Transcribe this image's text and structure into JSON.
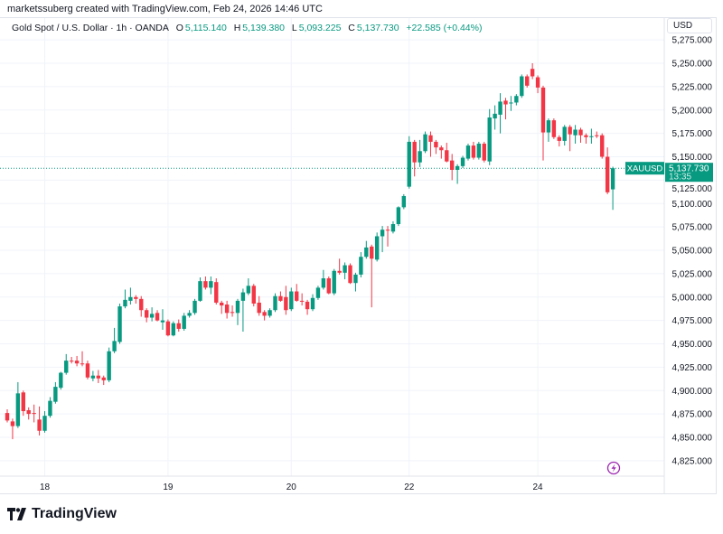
{
  "attribution": "marketssuberg created with TradingView.com, Feb 24, 2026 14:46 UTC",
  "legend": {
    "symbol_title": "Gold Spot / U.S. Dollar · 1h · OANDA",
    "open_label": "O",
    "open": "5,115.140",
    "high_label": "H",
    "high": "5,139.380",
    "low_label": "L",
    "low": "5,093.225",
    "close_label": "C",
    "close": "5,137.730",
    "change": "+22.585 (+0.44%)"
  },
  "currency": "USD",
  "last_price": {
    "symbol": "XAUUSD",
    "price": "5,137.730",
    "countdown": "13:35",
    "value": 5137.73
  },
  "logo_text": "TradingView",
  "colors": {
    "up": "#089981",
    "down": "#F23645",
    "grid": "#f0f3fa",
    "event_icon": "#9c27b0"
  },
  "icons": {
    "event": "lightning-icon"
  },
  "chart_data": {
    "type": "candlestick",
    "ylim": [
      4815,
      5285
    ],
    "y_ticks": [
      "5,275.000",
      "5,250.000",
      "5,225.000",
      "5,200.000",
      "5,175.000",
      "5,150.000",
      "5,125.000",
      "5,100.000",
      "5,075.000",
      "5,050.000",
      "5,025.000",
      "5,000.000",
      "4,975.000",
      "4,950.000",
      "4,925.000",
      "4,900.000",
      "4,875.000",
      "4,850.000",
      "4,825.000"
    ],
    "y_tick_values": [
      5275,
      5250,
      5225,
      5200,
      5175,
      5150,
      5125,
      5100,
      5075,
      5050,
      5025,
      5000,
      4975,
      4950,
      4925,
      4900,
      4875,
      4850,
      4825
    ],
    "x_ticks": [
      {
        "label": "18",
        "index": 7
      },
      {
        "label": "19",
        "index": 30
      },
      {
        "label": "20",
        "index": 53
      },
      {
        "label": "22",
        "index": 75
      },
      {
        "label": "24",
        "index": 99
      }
    ],
    "grid": true,
    "candles_ohlc": [
      [
        4876,
        4880,
        4866,
        4868
      ],
      [
        4867,
        4870,
        4848,
        4862
      ],
      [
        4862,
        4909,
        4860,
        4897
      ],
      [
        4898,
        4900,
        4873,
        4878
      ],
      [
        4879,
        4882,
        4869,
        4875
      ],
      [
        4876,
        4885,
        4866,
        4875
      ],
      [
        4869,
        4883,
        4852,
        4857
      ],
      [
        4857,
        4878,
        4855,
        4873
      ],
      [
        4873,
        4893,
        4871,
        4889
      ],
      [
        4888,
        4909,
        4886,
        4904
      ],
      [
        4903,
        4920,
        4901,
        4919
      ],
      [
        4919,
        4939,
        4917,
        4932
      ],
      [
        4932,
        4936,
        4929,
        4931
      ],
      [
        4932,
        4937,
        4926,
        4929
      ],
      [
        4929,
        4942,
        4926,
        4928
      ],
      [
        4929,
        4932,
        4912,
        4914
      ],
      [
        4913,
        4921,
        4910,
        4916
      ],
      [
        4916,
        4922,
        4908,
        4913
      ],
      [
        4914,
        4916,
        4906,
        4911
      ],
      [
        4911,
        4946,
        4909,
        4942
      ],
      [
        4942,
        4967,
        4940,
        4953
      ],
      [
        4952,
        4993,
        4950,
        4990
      ],
      [
        4990,
        5008,
        4988,
        4997
      ],
      [
        4996,
        5010,
        4992,
        5000
      ],
      [
        5000,
        5002,
        4993,
        4998
      ],
      [
        4998,
        5001,
        4979,
        4986
      ],
      [
        4986,
        4988,
        4973,
        4978
      ],
      [
        4978,
        4989,
        4974,
        4982
      ],
      [
        4983,
        4986,
        4974,
        4975
      ],
      [
        4973,
        4987,
        4965,
        4975
      ],
      [
        4974,
        4976,
        4958,
        4959
      ],
      [
        4959,
        4974,
        4958,
        4972
      ],
      [
        4972,
        4976,
        4963,
        4966
      ],
      [
        4966,
        4983,
        4964,
        4980
      ],
      [
        4980,
        4986,
        4978,
        4983
      ],
      [
        4983,
        4998,
        4981,
        4996
      ],
      [
        4996,
        5021,
        4995,
        5017
      ],
      [
        5017,
        5022,
        5008,
        5010
      ],
      [
        5010,
        5022,
        5003,
        5017
      ],
      [
        5016,
        5020,
        4992,
        4994
      ],
      [
        4994,
        4996,
        4982,
        4991
      ],
      [
        4992,
        4996,
        4977,
        4983
      ],
      [
        4984,
        4991,
        4979,
        4983
      ],
      [
        4983,
        4998,
        4970,
        4996
      ],
      [
        4996,
        5009,
        4963,
        5005
      ],
      [
        5004,
        5020,
        5002,
        5012
      ],
      [
        5012,
        5014,
        4990,
        4993
      ],
      [
        4994,
        5001,
        4980,
        4983
      ],
      [
        4984,
        4986,
        4975,
        4980
      ],
      [
        4980,
        4988,
        4978,
        4986
      ],
      [
        4986,
        5004,
        4984,
        5001
      ],
      [
        5001,
        5006,
        4995,
        4996
      ],
      [
        5000,
        5012,
        4981,
        4986
      ],
      [
        4987,
        5010,
        4985,
        5006
      ],
      [
        5006,
        5014,
        4995,
        4996
      ],
      [
        4996,
        5004,
        4991,
        4995
      ],
      [
        4995,
        4997,
        4981,
        4987
      ],
      [
        4987,
        5003,
        4985,
        4999
      ],
      [
        4999,
        5012,
        4997,
        5010
      ],
      [
        5010,
        5029,
        5008,
        5020
      ],
      [
        5020,
        5022,
        5003,
        5004
      ],
      [
        5004,
        5030,
        5002,
        5028
      ],
      [
        5028,
        5041,
        5024,
        5026
      ],
      [
        5026,
        5037,
        5019,
        5034
      ],
      [
        5034,
        5036,
        5014,
        5015
      ],
      [
        5015,
        5026,
        5006,
        5024
      ],
      [
        5024,
        5048,
        5021,
        5043
      ],
      [
        5043,
        5060,
        5041,
        5053
      ],
      [
        5054,
        5056,
        4989,
        5041
      ],
      [
        5040,
        5069,
        5038,
        5065
      ],
      [
        5065,
        5076,
        5048,
        5072
      ],
      [
        5072,
        5076,
        5054,
        5071
      ],
      [
        5070,
        5081,
        5068,
        5078
      ],
      [
        5078,
        5097,
        5076,
        5096
      ],
      [
        5096,
        5110,
        5094,
        5108
      ],
      [
        5118,
        5172,
        5116,
        5166
      ],
      [
        5166,
        5168,
        5129,
        5144
      ],
      [
        5144,
        5168,
        5139,
        5156
      ],
      [
        5156,
        5177,
        5154,
        5174
      ],
      [
        5173,
        5177,
        5150,
        5166
      ],
      [
        5166,
        5168,
        5153,
        5160
      ],
      [
        5160,
        5162,
        5148,
        5157
      ],
      [
        5157,
        5165,
        5144,
        5145
      ],
      [
        5146,
        5153,
        5125,
        5136
      ],
      [
        5136,
        5142,
        5121,
        5140
      ],
      [
        5140,
        5151,
        5138,
        5149
      ],
      [
        5148,
        5164,
        5146,
        5162
      ],
      [
        5162,
        5166,
        5147,
        5149
      ],
      [
        5149,
        5166,
        5147,
        5164
      ],
      [
        5164,
        5166,
        5144,
        5146
      ],
      [
        5145,
        5201,
        5141,
        5192
      ],
      [
        5191,
        5205,
        5179,
        5196
      ],
      [
        5195,
        5218,
        5175,
        5209
      ],
      [
        5210,
        5213,
        5190,
        5206
      ],
      [
        5207,
        5215,
        5199,
        5208
      ],
      [
        5208,
        5217,
        5205,
        5215
      ],
      [
        5215,
        5238,
        5213,
        5236
      ],
      [
        5236,
        5238,
        5224,
        5226
      ],
      [
        5244,
        5250,
        5233,
        5236
      ],
      [
        5235,
        5237,
        5218,
        5224
      ],
      [
        5224,
        5226,
        5146,
        5176
      ],
      [
        5176,
        5191,
        5166,
        5189
      ],
      [
        5189,
        5191,
        5169,
        5171
      ],
      [
        5171,
        5173,
        5161,
        5167
      ],
      [
        5167,
        5184,
        5162,
        5182
      ],
      [
        5182,
        5184,
        5156,
        5174
      ],
      [
        5173,
        5184,
        5164,
        5179
      ],
      [
        5179,
        5181,
        5165,
        5173
      ],
      [
        5173,
        5175,
        5164,
        5171
      ],
      [
        5171,
        5180,
        5164,
        5172
      ],
      [
        5173,
        5177,
        5170,
        5172
      ],
      [
        5173,
        5175,
        5148,
        5150
      ],
      [
        5150,
        5160,
        5110,
        5112
      ],
      [
        5115.14,
        5139.38,
        5093.225,
        5137.73
      ]
    ]
  }
}
